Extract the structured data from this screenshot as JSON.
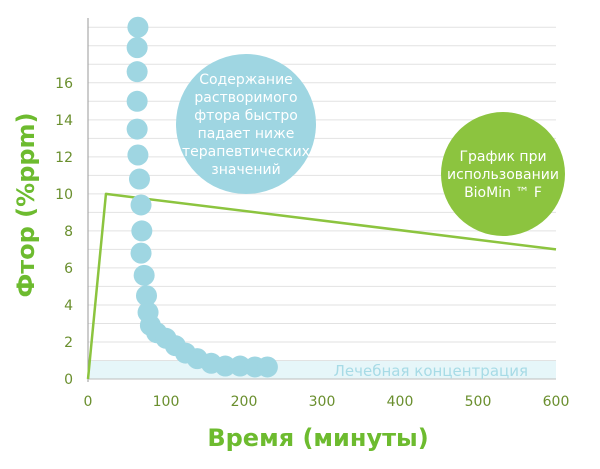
{
  "chart_data": {
    "type": "scatter",
    "xlabel": "Время (минуты)",
    "ylabel": "Фтор (%ppm)",
    "xlim": [
      0,
      600
    ],
    "ylim": [
      0,
      19.5
    ],
    "x_ticks": [
      "0",
      "100",
      "200",
      "300",
      "400",
      "500",
      "600"
    ],
    "y_ticks": [
      "0",
      "2",
      "4",
      "6",
      "8",
      "10",
      "12",
      "14",
      "16"
    ],
    "grid": "horizontal",
    "therapeutic_band": {
      "label": "Лечебная концентрация",
      "range": [
        0,
        1
      ]
    },
    "series": [
      {
        "kind": "points",
        "color": "#9fd6e2",
        "points": [
          [
            64,
            19.0
          ],
          [
            63,
            17.9
          ],
          [
            63,
            16.6
          ],
          [
            63,
            15.0
          ],
          [
            63,
            13.5
          ],
          [
            64,
            12.1
          ],
          [
            66,
            10.8
          ],
          [
            68,
            9.4
          ],
          [
            69,
            8.0
          ],
          [
            68,
            6.8
          ],
          [
            72,
            5.6
          ],
          [
            75,
            4.5
          ],
          [
            77,
            3.6
          ],
          [
            80,
            2.9
          ],
          [
            88,
            2.5
          ],
          [
            100,
            2.2
          ],
          [
            112,
            1.8
          ],
          [
            125,
            1.4
          ],
          [
            140,
            1.1
          ],
          [
            158,
            0.85
          ],
          [
            176,
            0.7
          ],
          [
            195,
            0.7
          ],
          [
            214,
            0.65
          ],
          [
            230,
            0.65
          ]
        ]
      },
      {
        "kind": "line",
        "color": "#8cc43f",
        "points": [
          [
            0,
            0
          ],
          [
            23,
            10.0
          ],
          [
            600,
            7.0
          ]
        ]
      }
    ],
    "annotations": {
      "standard": "Содержание растворимого фтора быстро падает ниже терапевтических значений",
      "biomin": "График при использовании BioMin ™ F"
    },
    "colors": {
      "axis_title": "#6dbb2f",
      "tick_label": "#6a8f2e",
      "grid": "#e2e2e2",
      "band": "#e6f6f9",
      "band_label": "#a7dbe6",
      "bubble_blue": "#9fd6e2",
      "bubble_green": "#8cc43f"
    }
  }
}
